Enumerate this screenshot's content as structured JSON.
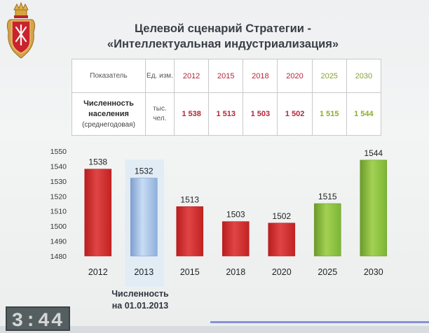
{
  "title": {
    "line1": "Целевой сценарий Стратегии -",
    "line2": "«Интеллектуальная индустриализация»"
  },
  "table": {
    "header_indicator": "Показатель",
    "header_unit": "Ед. изм.",
    "years": [
      "2012",
      "2015",
      "2018",
      "2020",
      "2025",
      "2030"
    ],
    "row_label_bold": "Численность населения",
    "row_label_sub": "(среднегодовая)",
    "row_unit": "тыс. чел.",
    "values": [
      "1 538",
      "1 513",
      "1 503",
      "1 502",
      "1 515",
      "1 544"
    ]
  },
  "chart_data": {
    "type": "bar",
    "categories": [
      "2012",
      "2013",
      "2015",
      "2018",
      "2020",
      "2025",
      "2030"
    ],
    "values": [
      1538,
      1532,
      1513,
      1503,
      1502,
      1515,
      1544
    ],
    "data_labels": [
      "1538",
      "1532",
      "1513",
      "1503",
      "1502",
      "1515",
      "1544"
    ],
    "ylim": [
      1480,
      1550
    ],
    "yticks": [
      1480,
      1490,
      1500,
      1510,
      1520,
      1530,
      1540,
      1550
    ],
    "ytick_labels": [
      "1480",
      "1490",
      "1500",
      "1510",
      "1520",
      "1530",
      "1540",
      "1550"
    ],
    "bar_colors": [
      "red",
      "blue",
      "red",
      "red",
      "red",
      "green",
      "green"
    ],
    "highlighted_category": "2013",
    "grid": false,
    "legend": "none",
    "title": "",
    "xlabel": "",
    "ylabel": ""
  },
  "caption": {
    "line1": "Численность",
    "line2": "на 01.01.2013"
  },
  "clock": {
    "time": "3:44"
  },
  "colors": {
    "red": "#d02a2a",
    "blue": "#a9c6ea",
    "green": "#82b63a",
    "table_red_text": "#b3263a",
    "table_green_text": "#82a339",
    "highlight_panel": "#e2ecf4"
  }
}
